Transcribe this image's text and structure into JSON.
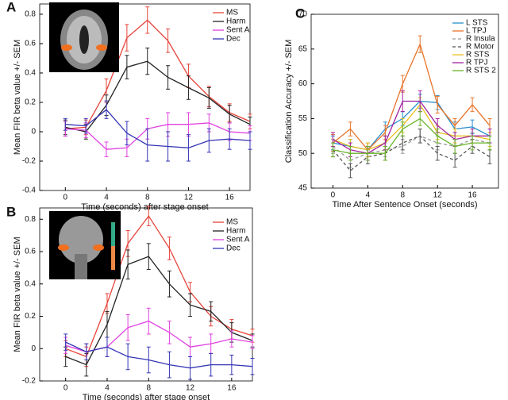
{
  "chart_data": [
    {
      "type": "line",
      "panel_label": "A",
      "xlabel": "Time (seconds) after stage onset",
      "ylabel": "Mean FIR beta value +/- SEM",
      "x": [
        0,
        2,
        4,
        6,
        8,
        10,
        12,
        14,
        16,
        18
      ],
      "xlim": [
        -2.5,
        18
      ],
      "xticks": [
        0,
        4,
        8,
        12,
        16
      ],
      "ylim": [
        -0.4,
        0.87
      ],
      "yticks": [
        -0.4,
        -0.2,
        0,
        0.2,
        0.4,
        0.6,
        0.8
      ],
      "legend": "upper right",
      "series": [
        {
          "name": "MS",
          "color": "#e5443a",
          "values": [
            0.02,
            0.03,
            0.28,
            0.64,
            0.76,
            0.62,
            0.38,
            0.24,
            0.13,
            0.07
          ],
          "errors": [
            0.05,
            0.05,
            0.08,
            0.09,
            0.09,
            0.08,
            0.08,
            0.07,
            0.06,
            0.05
          ]
        },
        {
          "name": "Harm",
          "color": "#222222",
          "values": [
            0.03,
            0.0,
            0.18,
            0.44,
            0.48,
            0.37,
            0.3,
            0.23,
            0.12,
            0.05
          ],
          "errors": [
            0.05,
            0.05,
            0.07,
            0.08,
            0.09,
            0.08,
            0.08,
            0.07,
            0.06,
            0.05
          ]
        },
        {
          "name": "Sent A",
          "color": "#e040e0",
          "values": [
            0.02,
            0.01,
            -0.12,
            -0.11,
            0.02,
            0.05,
            0.05,
            0.06,
            0.0,
            -0.01
          ],
          "errors": [
            0.05,
            0.05,
            0.05,
            0.06,
            0.07,
            0.08,
            0.08,
            0.06,
            0.06,
            0.05
          ]
        },
        {
          "name": "Dec",
          "color": "#3535b5",
          "values": [
            0.05,
            0.04,
            0.15,
            -0.01,
            -0.09,
            -0.1,
            -0.11,
            -0.06,
            -0.05,
            -0.06
          ],
          "errors": [
            0.04,
            0.05,
            0.06,
            0.08,
            0.11,
            0.1,
            0.09,
            0.08,
            0.07,
            0.06
          ]
        }
      ]
    },
    {
      "type": "line",
      "panel_label": "B",
      "xlabel": "Time (seconds) after stage onset",
      "ylabel": "Mean FIR beta value +/- SEM",
      "x": [
        0,
        2,
        4,
        6,
        8,
        10,
        12,
        14,
        16,
        18
      ],
      "xlim": [
        -2.5,
        18
      ],
      "xticks": [
        0,
        4,
        8,
        12,
        16
      ],
      "ylim": [
        -0.2,
        0.87
      ],
      "yticks": [
        -0.2,
        0,
        0.2,
        0.4,
        0.6,
        0.8
      ],
      "legend": "upper right",
      "series": [
        {
          "name": "MS",
          "color": "#e5443a",
          "values": [
            0.0,
            -0.05,
            0.28,
            0.65,
            0.82,
            0.62,
            0.35,
            0.2,
            0.12,
            0.08
          ],
          "errors": [
            0.05,
            0.06,
            0.06,
            0.08,
            0.06,
            0.07,
            0.06,
            0.06,
            0.06,
            0.04
          ]
        },
        {
          "name": "Harm",
          "color": "#222222",
          "values": [
            -0.05,
            -0.1,
            0.15,
            0.52,
            0.57,
            0.4,
            0.27,
            0.23,
            0.1,
            0.05
          ],
          "errors": [
            0.06,
            0.07,
            0.08,
            0.09,
            0.08,
            0.08,
            0.07,
            0.06,
            0.06,
            0.04
          ]
        },
        {
          "name": "Sent A",
          "color": "#e040e0",
          "values": [
            0.02,
            -0.02,
            0.01,
            0.13,
            0.17,
            0.1,
            0.01,
            0.03,
            0.06,
            0.04
          ],
          "errors": [
            0.05,
            0.05,
            0.06,
            0.08,
            0.08,
            0.07,
            0.06,
            0.06,
            0.05,
            0.04
          ]
        },
        {
          "name": "Dec",
          "color": "#3535b5",
          "values": [
            0.04,
            -0.02,
            0.01,
            -0.05,
            -0.07,
            -0.1,
            -0.12,
            -0.1,
            -0.1,
            -0.11
          ],
          "errors": [
            0.05,
            0.05,
            0.06,
            0.08,
            0.08,
            0.08,
            0.07,
            0.07,
            0.06,
            0.05
          ]
        }
      ]
    },
    {
      "type": "line",
      "panel_label": "C",
      "xlabel": "Time After Sentence Onset (seconds)",
      "ylabel": "Classification Accuracy +/- SEM",
      "x": [
        0,
        2,
        4,
        6,
        8,
        10,
        12,
        14,
        16,
        18
      ],
      "xlim": [
        -2.5,
        19
      ],
      "xticks": [
        0,
        4,
        8,
        12,
        16
      ],
      "ylim": [
        45,
        70
      ],
      "yticks": [
        45,
        50,
        55,
        60,
        65,
        70
      ],
      "legend": "upper right",
      "series": [
        {
          "name": "L STS",
          "color": "#2a8fd0",
          "dash": false,
          "values": [
            51.5,
            51,
            50.5,
            53.5,
            55,
            57.5,
            57.3,
            53.5,
            53.8,
            52.5
          ],
          "errors": [
            1,
            1,
            1,
            1,
            1,
            1,
            1,
            1,
            1,
            1
          ]
        },
        {
          "name": "L TPJ",
          "color": "#e8742a",
          "dash": false,
          "values": [
            51.5,
            53.5,
            50.5,
            53,
            60,
            65.7,
            57,
            54,
            57,
            54
          ],
          "errors": [
            1.2,
            1,
            1,
            1,
            1.2,
            1.2,
            1.2,
            1,
            1,
            1
          ]
        },
        {
          "name": "R Insula",
          "color": "#999999",
          "dash": true,
          "values": [
            51,
            49,
            50,
            50.5,
            51,
            52.5,
            51.5,
            51,
            52,
            51.5
          ],
          "errors": [
            1,
            1,
            1,
            1,
            1,
            1,
            1,
            1,
            1,
            1
          ]
        },
        {
          "name": "R Motor",
          "color": "#555555",
          "dash": true,
          "values": [
            50.5,
            47.5,
            49.5,
            50,
            51.5,
            52.5,
            50,
            49,
            51,
            49.5
          ],
          "errors": [
            1,
            1,
            1,
            1,
            1,
            1,
            1,
            1,
            1,
            1
          ]
        },
        {
          "name": "R STS",
          "color": "#e8c020",
          "dash": false,
          "values": [
            52,
            51,
            50.5,
            51.5,
            54,
            57,
            53,
            52.5,
            52.5,
            52
          ],
          "errors": [
            1,
            1,
            1,
            1,
            1,
            1,
            1,
            1,
            1,
            1
          ]
        },
        {
          "name": "R TPJ",
          "color": "#a020a0",
          "dash": false,
          "values": [
            52,
            50.5,
            50,
            51.5,
            57.5,
            57.5,
            54,
            52,
            52.5,
            52.5
          ],
          "errors": [
            1,
            1,
            1,
            1,
            1.5,
            1.5,
            1,
            1,
            1,
            1
          ]
        },
        {
          "name": "R STS 2",
          "color": "#6ab42a",
          "dash": false,
          "values": [
            50.5,
            50,
            50,
            50,
            53.5,
            55,
            52.5,
            51,
            51.5,
            51.5
          ],
          "errors": [
            1,
            1,
            1,
            1,
            1,
            1,
            1,
            1,
            1,
            1
          ]
        }
      ]
    }
  ]
}
